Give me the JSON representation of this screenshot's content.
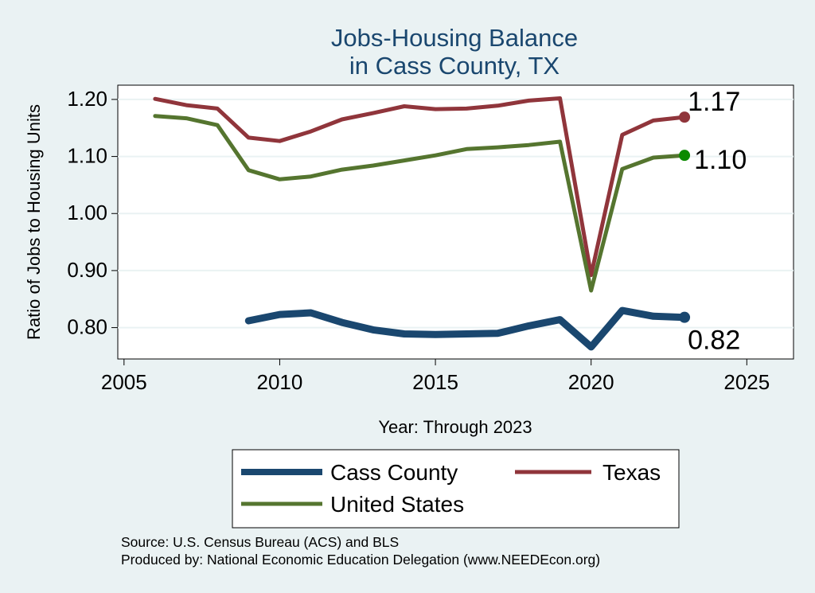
{
  "chart_data": {
    "type": "line",
    "title": [
      "Jobs-Housing Balance",
      "in Cass County, TX"
    ],
    "xlabel": "Year: Through 2023",
    "ylabel": "Ratio of Jobs to Housing Units",
    "xlim": [
      2004.8,
      2026.5
    ],
    "ylim": [
      0.745,
      1.225
    ],
    "xticks": [
      2005,
      2010,
      2015,
      2020,
      2025
    ],
    "yticks": [
      0.8,
      0.9,
      1.0,
      1.1,
      1.2
    ],
    "ytick_labels": [
      "0.80",
      "0.90",
      "1.00",
      "1.10",
      "1.20"
    ],
    "grid": true,
    "series": [
      {
        "name": "Cass County",
        "color": "#1a476f",
        "end_label": "0.82",
        "x": [
          2009,
          2010,
          2011,
          2012,
          2013,
          2014,
          2015,
          2016,
          2017,
          2018,
          2019,
          2020,
          2021,
          2022,
          2023
        ],
        "values": [
          0.812,
          0.823,
          0.826,
          0.809,
          0.796,
          0.789,
          0.788,
          0.789,
          0.79,
          0.803,
          0.814,
          0.766,
          0.83,
          0.82,
          0.818
        ]
      },
      {
        "name": "Texas",
        "color": "#90353b",
        "end_label": "1.17",
        "x": [
          2006,
          2007,
          2008,
          2009,
          2010,
          2011,
          2012,
          2013,
          2014,
          2015,
          2016,
          2017,
          2018,
          2019,
          2020,
          2021,
          2022,
          2023
        ],
        "values": [
          1.201,
          1.19,
          1.184,
          1.133,
          1.127,
          1.144,
          1.165,
          1.176,
          1.188,
          1.183,
          1.184,
          1.189,
          1.198,
          1.202,
          0.892,
          1.138,
          1.163,
          1.169
        ]
      },
      {
        "name": "United States",
        "color": "#55752f",
        "end_label": "1.10",
        "x": [
          2006,
          2007,
          2008,
          2009,
          2010,
          2011,
          2012,
          2013,
          2014,
          2015,
          2016,
          2017,
          2018,
          2019,
          2020,
          2021,
          2022,
          2023
        ],
        "values": [
          1.171,
          1.167,
          1.155,
          1.076,
          1.06,
          1.065,
          1.077,
          1.084,
          1.093,
          1.102,
          1.113,
          1.116,
          1.12,
          1.126,
          0.865,
          1.078,
          1.098,
          1.102
        ]
      }
    ],
    "legend": [
      "Cass County",
      "Texas",
      "United States"
    ],
    "legend_position": "bottom"
  },
  "notes": {
    "source": "Source: U.S. Census Bureau (ACS) and BLS",
    "produced_by": "Produced by: National Economic Education Delegation (www.NEEDEcon.org)"
  }
}
